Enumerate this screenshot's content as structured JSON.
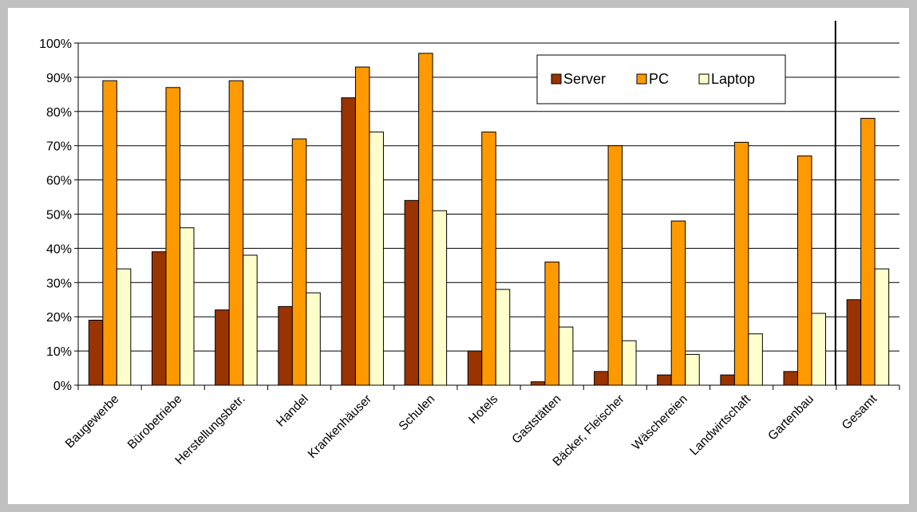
{
  "chart_data": {
    "type": "bar",
    "categories": [
      "Baugewerbe",
      "Bürobetriebe",
      "Herstellungsbetr.",
      "Handel",
      "Krankenhäuser",
      "Schulen",
      "Hotels",
      "Gaststätten",
      "Bäcker, Fleischer",
      "Wäschereien",
      "Landwirtschaft",
      "Gartenbau",
      "Gesamt"
    ],
    "series": [
      {
        "name": "Server",
        "color": "#993300",
        "values": [
          19,
          39,
          22,
          23,
          84,
          54,
          10,
          1,
          4,
          3,
          3,
          4,
          25
        ]
      },
      {
        "name": "PC",
        "color": "#ff9900",
        "values": [
          89,
          87,
          89,
          72,
          93,
          97,
          74,
          36,
          70,
          48,
          71,
          67,
          78
        ]
      },
      {
        "name": "Laptop",
        "color": "#ffffcc",
        "values": [
          34,
          46,
          38,
          27,
          74,
          51,
          28,
          17,
          13,
          9,
          15,
          21,
          34
        ]
      }
    ],
    "ylim": [
      0,
      100
    ],
    "yticks": [
      "0%",
      "10%",
      "20%",
      "30%",
      "40%",
      "50%",
      "60%",
      "70%",
      "80%",
      "90%",
      "100%"
    ],
    "grid": true,
    "legend": "top-right"
  }
}
